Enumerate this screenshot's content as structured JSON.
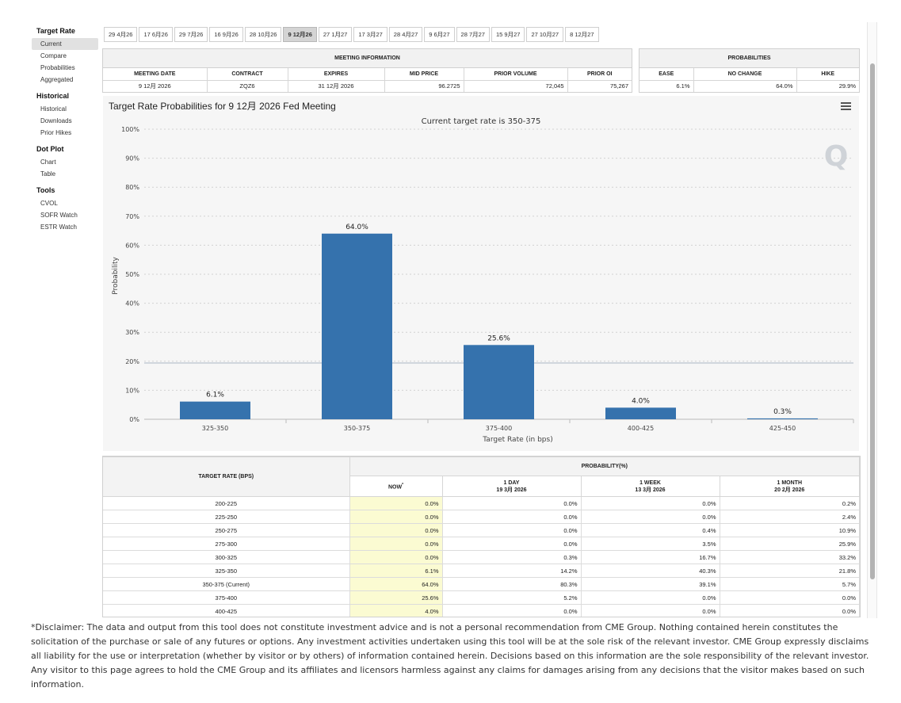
{
  "sidebar": {
    "groups": [
      {
        "title": "Target Rate",
        "items": [
          {
            "label": "Current",
            "active": true
          },
          {
            "label": "Compare"
          },
          {
            "label": "Probabilities"
          },
          {
            "label": "Aggregated"
          }
        ]
      },
      {
        "title": "Historical",
        "items": [
          {
            "label": "Historical"
          },
          {
            "label": "Downloads"
          },
          {
            "label": "Prior Hikes"
          }
        ]
      },
      {
        "title": "Dot Plot",
        "items": [
          {
            "label": "Chart"
          },
          {
            "label": "Table"
          }
        ]
      },
      {
        "title": "Tools",
        "items": [
          {
            "label": "CVOL"
          },
          {
            "label": "SOFR Watch"
          },
          {
            "label": "ESTR Watch"
          }
        ]
      }
    ]
  },
  "date_tabs": [
    {
      "label": "29 4月26"
    },
    {
      "label": "17 6月26"
    },
    {
      "label": "29 7月26"
    },
    {
      "label": "16 9月26"
    },
    {
      "label": "28 10月26"
    },
    {
      "label": "9 12月26",
      "active": true
    },
    {
      "label": "27 1月27"
    },
    {
      "label": "17 3月27"
    },
    {
      "label": "28 4月27"
    },
    {
      "label": "9 6月27"
    },
    {
      "label": "28 7月27"
    },
    {
      "label": "15 9月27"
    },
    {
      "label": "27 10月27"
    },
    {
      "label": "8 12月27"
    }
  ],
  "meeting_info": {
    "title": "MEETING INFORMATION",
    "headers": [
      "MEETING DATE",
      "CONTRACT",
      "EXPIRES",
      "MID PRICE",
      "PRIOR VOLUME",
      "PRIOR OI"
    ],
    "values": [
      "9 12月 2026",
      "ZQZ6",
      "31 12月 2026",
      "96.2725",
      "72,045",
      "75,267"
    ]
  },
  "probabilities": {
    "title": "PROBABILITIES",
    "headers": [
      "EASE",
      "NO CHANGE",
      "HIKE"
    ],
    "values": [
      "6.1%",
      "64.0%",
      "29.9%"
    ]
  },
  "chart_data": {
    "type": "bar",
    "title": "Target Rate Probabilities for 9 12月 2026 Fed Meeting",
    "subtitle": "Current target rate is 350-375",
    "xlabel": "Target Rate (in bps)",
    "ylabel": "Probability",
    "categories": [
      "325-350",
      "350-375",
      "375-400",
      "400-425",
      "425-450"
    ],
    "values": [
      6.1,
      64.0,
      25.6,
      4.0,
      0.3
    ],
    "data_labels": [
      "6.1%",
      "64.0%",
      "25.6%",
      "4.0%",
      "0.3%"
    ],
    "ylim": [
      0,
      100
    ],
    "yticks": [
      "0%",
      "10%",
      "20%",
      "30%",
      "40%",
      "50%",
      "60%",
      "70%",
      "80%",
      "90%",
      "100%"
    ],
    "bar_color": "#3572ad",
    "grid": true,
    "watermark": "Q"
  },
  "prob_table": {
    "col_target": "TARGET RATE (BPS)",
    "col_prob": "PROBABILITY(%)",
    "sub_headers": [
      {
        "line1": "NOW",
        "line2": "",
        "star": "*"
      },
      {
        "line1": "1 DAY",
        "line2": "19 3月 2026"
      },
      {
        "line1": "1 WEEK",
        "line2": "13 3月 2026"
      },
      {
        "line1": "1 MONTH",
        "line2": "20 2月 2026"
      }
    ],
    "rows": [
      {
        "rate": "200-225",
        "now": "0.0%",
        "day": "0.0%",
        "week": "0.0%",
        "month": "0.2%"
      },
      {
        "rate": "225-250",
        "now": "0.0%",
        "day": "0.0%",
        "week": "0.0%",
        "month": "2.4%"
      },
      {
        "rate": "250-275",
        "now": "0.0%",
        "day": "0.0%",
        "week": "0.4%",
        "month": "10.9%"
      },
      {
        "rate": "275-300",
        "now": "0.0%",
        "day": "0.0%",
        "week": "3.5%",
        "month": "25.9%"
      },
      {
        "rate": "300-325",
        "now": "0.0%",
        "day": "0.3%",
        "week": "16.7%",
        "month": "33.2%"
      },
      {
        "rate": "325-350",
        "now": "6.1%",
        "day": "14.2%",
        "week": "40.3%",
        "month": "21.8%"
      },
      {
        "rate": "350-375 (Current)",
        "now": "64.0%",
        "day": "80.3%",
        "week": "39.1%",
        "month": "5.7%"
      },
      {
        "rate": "375-400",
        "now": "25.6%",
        "day": "5.2%",
        "week": "0.0%",
        "month": "0.0%"
      },
      {
        "rate": "400-425",
        "now": "4.0%",
        "day": "0.0%",
        "week": "0.0%",
        "month": "0.0%"
      }
    ]
  },
  "disclaimer": "*Disclaimer: The data and output from this tool does not constitute investment advice and is not a personal recommendation from CME Group.  Nothing contained herein constitutes the solicitation of the purchase or sale of any futures or options.  Any investment activities undertaken using this tool will be at the sole risk of the relevant investor.  CME Group expressly disclaims all liability for the use or interpretation (whether by visitor or by others) of information contained herein. Decisions based on this information are the sole responsibility of the relevant investor.  Any visitor to this page agrees to hold the CME Group and its affiliates and licensors harmless against any claims for damages arising from any decisions that the visitor makes based on such information."
}
